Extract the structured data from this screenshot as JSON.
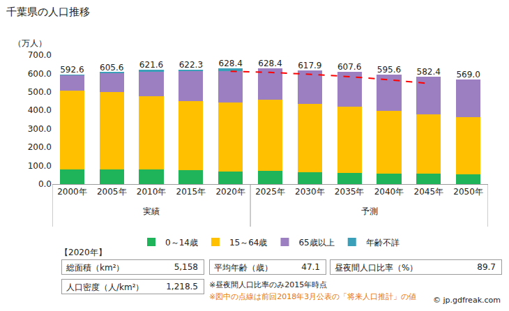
{
  "chart_data": {
    "type": "bar",
    "title": "千葉県の人口推移",
    "y_label": "（万人）",
    "stacked": true,
    "grid": false,
    "legend": "bottom",
    "categories": [
      "2000年",
      "2005年",
      "2010年",
      "2015年",
      "2020年",
      "2025年",
      "2030年",
      "2035年",
      "2040年",
      "2045年",
      "2050年"
    ],
    "groups": [
      {
        "label": "実績",
        "from": "2000年",
        "to": "2020年"
      },
      {
        "label": "予測",
        "from": "2025年",
        "to": "2050年"
      }
    ],
    "series": [
      {
        "name": "0～14歳",
        "color": "#1fb35a",
        "values": [
          80,
          80,
          78,
          74,
          70,
          73,
          63,
          59,
          58,
          57,
          54
        ]
      },
      {
        "name": "15～64歳",
        "color": "#ffc000",
        "values": [
          428,
          418,
          399,
          377,
          373,
          384,
          372,
          361,
          339,
          320,
          311
        ]
      },
      {
        "name": "65歳以上",
        "color": "#9b7fc0",
        "values": [
          84,
          106,
          134,
          161,
          171,
          171.4,
          182.9,
          187.6,
          198.6,
          205.4,
          204
        ]
      },
      {
        "name": "年齢不詳",
        "color": "#3a9fb8",
        "values": [
          0.6,
          1.6,
          10.6,
          10.3,
          14.4,
          null,
          null,
          null,
          null,
          null,
          null
        ]
      }
    ],
    "totals": {
      "values": [
        592.6,
        605.6,
        621.6,
        622.3,
        628.4,
        628.4,
        617.9,
        607.6,
        595.6,
        582.4,
        569
      ],
      "value_labels": [
        "592.6",
        "605.6",
        "621.6",
        "622.3",
        "628.4",
        "628.4",
        "617.9",
        "607.6",
        "595.6",
        "582.4",
        "569.0"
      ]
    },
    "previous_projection": {
      "type": "line",
      "color": "#ff0000",
      "line_style": "dash",
      "values": [
        null,
        null,
        null,
        null,
        612,
        606,
        596,
        583,
        566,
        546,
        null
      ]
    },
    "ylim": [
      0,
      700
    ],
    "yticks": [
      {
        "value": 0,
        "label": "0.0"
      },
      {
        "value": 100,
        "label": "100.0"
      },
      {
        "value": 200,
        "label": "200.0"
      },
      {
        "value": 300,
        "label": "300.0"
      },
      {
        "value": 400,
        "label": "400.0"
      },
      {
        "value": 500,
        "label": "500.0"
      },
      {
        "value": 600,
        "label": "600.0"
      },
      {
        "value": 700,
        "label": "700.0"
      }
    ]
  },
  "info_panel": {
    "heading": "【2020年】",
    "items": [
      {
        "label": "総面積（km²）",
        "value": "5,158"
      },
      {
        "label": "平均年齢（歳）",
        "value": "47.1"
      },
      {
        "label": "昼夜間人口比率（%）",
        "value": "89.7"
      },
      {
        "label": "人口密度（人/km²）",
        "value": "1,218.5"
      }
    ],
    "notes": [
      "※昼夜間人口比率のみ2015年時点",
      "※図中の点線は前回2018年3月公表の「将来人口推計」の値"
    ],
    "credit": "© jp.gdfreak.com"
  }
}
